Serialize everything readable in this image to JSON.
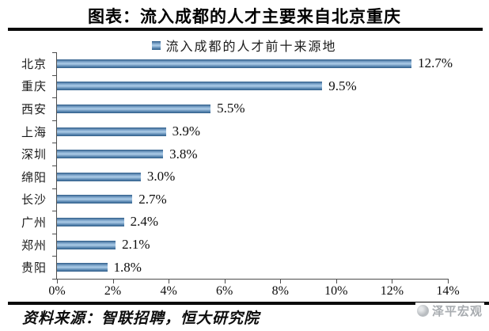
{
  "page": {
    "title": "图表：流入成都的人才主要来自北京重庆",
    "source_note": "资料来源：智联招聘，恒大研究院",
    "watermark": "泽平宏观",
    "watermark_icon": "zeping-macro-logo-icon"
  },
  "chart_data": {
    "type": "bar",
    "orientation": "horizontal",
    "legend_label": "流入成都的人才前十来源地",
    "legend_position": "top-center",
    "categories": [
      "北京",
      "重庆",
      "西安",
      "上海",
      "深圳",
      "绵阳",
      "长沙",
      "广州",
      "郑州",
      "贵阳"
    ],
    "values": [
      12.7,
      9.5,
      5.5,
      3.9,
      3.8,
      3.0,
      2.7,
      2.4,
      2.1,
      1.8
    ],
    "data_labels": [
      "12.7%",
      "9.5%",
      "5.5%",
      "3.9%",
      "3.8%",
      "3.0%",
      "2.7%",
      "2.4%",
      "2.1%",
      "1.8%"
    ],
    "xlabel": "",
    "ylabel": "",
    "xlim": [
      0,
      14
    ],
    "x_tick_step": 2,
    "x_ticks": [
      "0%",
      "2%",
      "4%",
      "6%",
      "8%",
      "10%",
      "12%",
      "14%"
    ],
    "grid": false,
    "colors": {
      "bar_top_edge": "#2e5c88",
      "bar_mid": "#aecde8",
      "bar_bottom_edge": "#2e5c88",
      "axis": "#4d4d4d",
      "text": "#0d0d0d",
      "divider": "#0b0b0b",
      "watermark_gray": "#a8acb0"
    }
  }
}
